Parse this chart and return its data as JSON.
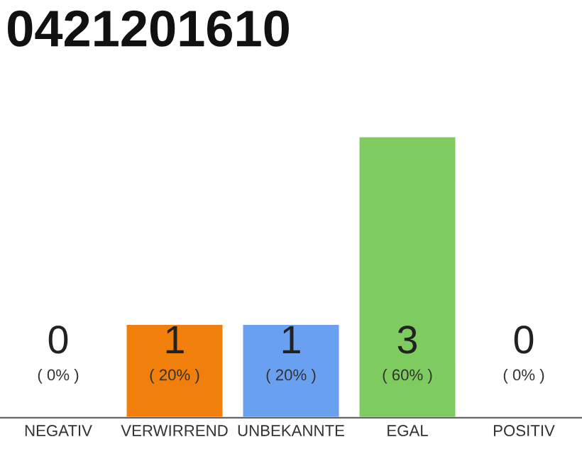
{
  "chart_data": {
    "type": "bar",
    "title": "0421201610",
    "categories": [
      "NEGATIV",
      "VERWIRREND",
      "UNBEKANNTE",
      "EGAL",
      "POSITIV"
    ],
    "values": [
      0,
      1,
      1,
      3,
      0
    ],
    "colors": [
      null,
      "#f07f0c",
      "#6aa0f0",
      "#7ecb5f",
      null
    ],
    "value_labels": [
      "0\n( 0% )",
      "1\n( 20% )",
      "1\n( 20% )",
      "3\n( 60% )",
      "0\n( 0% )"
    ],
    "ylim": [
      0,
      3
    ],
    "tick_labels": "x",
    "grid": false,
    "legend": false
  }
}
